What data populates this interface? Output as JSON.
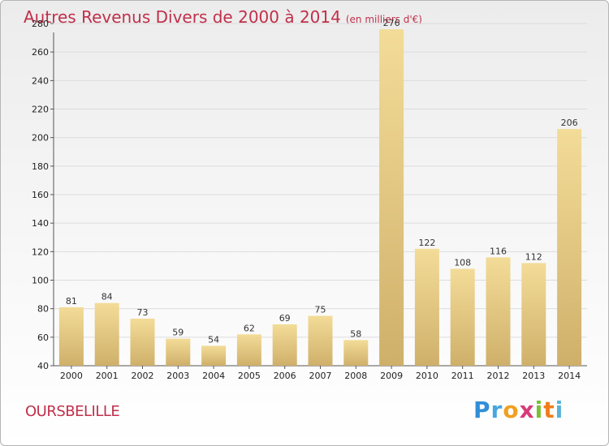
{
  "title": "Autres Revenus Divers de 2000 à 2014",
  "unit": "(en milliers d'€)",
  "commune": "OURSBELILLE",
  "logo": "Proxiti",
  "colors": {
    "title": "#c0304a",
    "bar_light": "#f3dc98",
    "bar_dark": "#cfb06a",
    "axis": "#555555",
    "grid": "#dcdcdc"
  },
  "chart_data": {
    "type": "bar",
    "title": "Autres Revenus Divers de 2000 à 2014",
    "xlabel": "",
    "ylabel": "",
    "categories": [
      "2000",
      "2001",
      "2002",
      "2003",
      "2004",
      "2005",
      "2006",
      "2007",
      "2008",
      "2009",
      "2010",
      "2011",
      "2012",
      "2013",
      "2014"
    ],
    "values": [
      81,
      84,
      73,
      59,
      54,
      62,
      69,
      75,
      58,
      276,
      122,
      108,
      116,
      112,
      206
    ],
    "ylim": [
      40,
      280
    ],
    "yticks": [
      40,
      60,
      80,
      100,
      120,
      140,
      160,
      180,
      200,
      220,
      240,
      260,
      280
    ],
    "grid": true,
    "legend": "none"
  }
}
